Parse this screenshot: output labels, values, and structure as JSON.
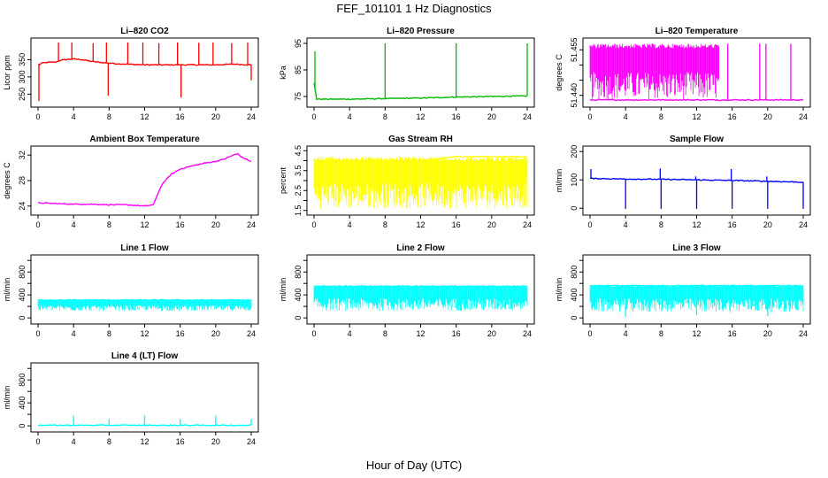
{
  "figure": {
    "title": "FEF_101101  1 Hz Diagnostics",
    "xlabel": "Hour of Day (UTC)"
  },
  "chart_data": [
    {
      "type": "line",
      "title": "Li–820 CO2",
      "ylabel": "Licor ppm",
      "xlim": [
        0,
        24
      ],
      "ylim": [
        220,
        405
      ],
      "x_ticks": [
        0,
        4,
        8,
        12,
        16,
        20,
        24
      ],
      "y_ticks": [
        250,
        300,
        350
      ],
      "color": "#ff0000",
      "series": [
        {
          "x": [
            0,
            0.5,
            1,
            2,
            2.5,
            3,
            4,
            5,
            6,
            7,
            8,
            9,
            10,
            11,
            12,
            13,
            14,
            15,
            16,
            17,
            18,
            19,
            20,
            21,
            22,
            23,
            24
          ],
          "values": [
            335,
            340,
            342,
            343,
            348,
            350,
            352,
            350,
            345,
            342,
            340,
            338,
            337,
            336,
            335,
            335,
            335,
            335,
            335,
            335,
            335,
            335,
            335,
            336,
            337,
            336,
            335
          ]
        }
      ],
      "spikes_high": [
        {
          "x": 2.3,
          "y": 400
        },
        {
          "x": 3.8,
          "y": 400
        },
        {
          "x": 6.2,
          "y": 398
        },
        {
          "x": 7.7,
          "y": 400
        },
        {
          "x": 10.1,
          "y": 400
        },
        {
          "x": 11.8,
          "y": 400
        },
        {
          "x": 13.6,
          "y": 398
        },
        {
          "x": 15.7,
          "y": 400
        },
        {
          "x": 18.1,
          "y": 399
        },
        {
          "x": 19.7,
          "y": 400
        },
        {
          "x": 21.8,
          "y": 398
        },
        {
          "x": 23.6,
          "y": 400
        }
      ],
      "spikes_low": [
        {
          "x": 0.1,
          "y": 230
        },
        {
          "x": 7.9,
          "y": 245
        },
        {
          "x": 16.1,
          "y": 240
        },
        {
          "x": 24,
          "y": 290
        }
      ]
    },
    {
      "type": "line",
      "title": "Li–820 Pressure",
      "ylabel": "kPa",
      "xlim": [
        0,
        24
      ],
      "ylim": [
        72,
        96
      ],
      "x_ticks": [
        0,
        4,
        8,
        12,
        16,
        20,
        24
      ],
      "y_ticks": [
        75,
        85,
        95
      ],
      "color": "#00bb00",
      "series": [
        {
          "x": [
            0,
            0.3,
            4,
            8,
            12,
            16,
            20,
            24
          ],
          "values": [
            80,
            74,
            74,
            74.2,
            74.4,
            74.8,
            75,
            75.2
          ]
        }
      ],
      "spikes_high": [
        {
          "x": 0.1,
          "y": 92
        },
        {
          "x": 8.0,
          "y": 95
        },
        {
          "x": 16.0,
          "y": 95
        },
        {
          "x": 24.0,
          "y": 95
        }
      ],
      "spikes_low": []
    },
    {
      "type": "line",
      "title": "Li–820 Temperature",
      "ylabel": "degrees C",
      "xlim": [
        0,
        24
      ],
      "ylim": [
        51.437,
        51.458
      ],
      "x_ticks": [
        0,
        4,
        8,
        12,
        16,
        20,
        24
      ],
      "y_ticks": [
        51.44,
        51.445,
        51.45,
        51.455
      ],
      "y_tick_labels": [
        "51.440",
        "",
        "",
        "51.455"
      ],
      "color": "#ff00ff",
      "series": [
        {
          "x": [
            0,
            24
          ],
          "values": [
            51.4385,
            51.4385
          ]
        }
      ],
      "band_dense": {
        "from": 0,
        "to": 14.5,
        "low": 51.4385,
        "high": 51.457
      },
      "spikes_high": [
        {
          "x": 15.5,
          "y": 51.457
        },
        {
          "x": 19.1,
          "y": 51.457
        },
        {
          "x": 19.8,
          "y": 51.457
        },
        {
          "x": 22.6,
          "y": 51.457
        }
      ],
      "spikes_low": []
    },
    {
      "type": "line",
      "title": "Ambient Box Temperature",
      "ylabel": "degrees C",
      "xlim": [
        0,
        24
      ],
      "ylim": [
        23,
        33
      ],
      "x_ticks": [
        0,
        4,
        8,
        12,
        16,
        20,
        24
      ],
      "y_ticks": [
        24,
        28,
        32
      ],
      "color": "#ff00ff",
      "series": [
        {
          "x": [
            0,
            2,
            4,
            6,
            8,
            10,
            12,
            13,
            13.5,
            14,
            15,
            16,
            17,
            18,
            19,
            20,
            21,
            22,
            22.5,
            23,
            24
          ],
          "values": [
            24.5,
            24.4,
            24.3,
            24.3,
            24.2,
            24.2,
            24.0,
            24.2,
            26.0,
            27.5,
            29.0,
            29.8,
            30.2,
            30.5,
            30.8,
            31.0,
            31.4,
            32.0,
            32.2,
            31.6,
            31.0
          ]
        }
      ],
      "spikes_high": [],
      "spikes_low": []
    },
    {
      "type": "line",
      "title": "Gas Stream RH",
      "ylabel": "percent",
      "xlim": [
        0,
        24
      ],
      "ylim": [
        1.4,
        4.6
      ],
      "x_ticks": [
        0,
        4,
        8,
        12,
        16,
        20,
        24
      ],
      "y_ticks": [
        1.5,
        2.0,
        2.5,
        3.0,
        3.5,
        4.0,
        4.5
      ],
      "y_tick_labels": [
        "1.5",
        "",
        "2.5",
        "",
        "3.5",
        "",
        "4.5"
      ],
      "color": "#ffff00",
      "series": [
        {
          "x": [
            0,
            4,
            8,
            12,
            16,
            20,
            24
          ],
          "values": [
            4.0,
            4.0,
            4.0,
            4.0,
            4.2,
            4.2,
            4.2
          ]
        }
      ],
      "band_dense": {
        "from": 0,
        "to": 24,
        "low": 1.6,
        "high": 4.2
      },
      "spikes_high": [],
      "spikes_low": []
    },
    {
      "type": "line",
      "title": "Sample Flow",
      "ylabel": "ml/min",
      "xlim": [
        0,
        24
      ],
      "ylim": [
        -15,
        210
      ],
      "x_ticks": [
        0,
        4,
        8,
        12,
        16,
        20,
        24
      ],
      "y_ticks": [
        0,
        100,
        200
      ],
      "color": "#0000ff",
      "series": [
        {
          "x": [
            0,
            4,
            8,
            12,
            16,
            20,
            24
          ],
          "values": [
            105,
            103,
            102,
            100,
            98,
            95,
            92
          ]
        }
      ],
      "spikes_high": [
        {
          "x": 0.1,
          "y": 138
        },
        {
          "x": 7.9,
          "y": 140
        },
        {
          "x": 11.9,
          "y": 112
        },
        {
          "x": 15.9,
          "y": 138
        },
        {
          "x": 19.9,
          "y": 112
        }
      ],
      "spikes_low": [
        {
          "x": 4.0,
          "y": -2
        },
        {
          "x": 8.0,
          "y": -2
        },
        {
          "x": 12.0,
          "y": -2
        },
        {
          "x": 16.0,
          "y": -2
        },
        {
          "x": 20.0,
          "y": -2
        },
        {
          "x": 24.0,
          "y": -2
        }
      ]
    },
    {
      "type": "line",
      "title": "Line 1 Flow",
      "ylabel": "ml/min",
      "xlim": [
        0,
        24
      ],
      "ylim": [
        -60,
        1050
      ],
      "x_ticks": [
        0,
        4,
        8,
        12,
        16,
        20,
        24
      ],
      "y_ticks": [
        0,
        200,
        400,
        600,
        800,
        1000
      ],
      "y_tick_labels": [
        "0",
        "",
        "400",
        "",
        "800",
        ""
      ],
      "color": "#00ffff",
      "series": [
        {
          "x": [
            0,
            24
          ],
          "values": [
            310,
            310
          ]
        }
      ],
      "band_dense": {
        "from": 0,
        "to": 24,
        "low": 120,
        "high": 320
      },
      "spikes_high": [],
      "spikes_low": []
    },
    {
      "type": "line",
      "title": "Line 2 Flow",
      "ylabel": "ml/min",
      "xlim": [
        0,
        24
      ],
      "ylim": [
        -60,
        1050
      ],
      "x_ticks": [
        0,
        4,
        8,
        12,
        16,
        20,
        24
      ],
      "y_ticks": [
        0,
        200,
        400,
        600,
        800,
        1000
      ],
      "y_tick_labels": [
        "0",
        "",
        "400",
        "",
        "800",
        ""
      ],
      "color": "#00ffff",
      "series": [
        {
          "x": [
            0,
            24
          ],
          "values": [
            550,
            550
          ]
        }
      ],
      "band_dense": {
        "from": 0,
        "to": 24,
        "low": 120,
        "high": 570
      },
      "spikes_high": [],
      "spikes_low": []
    },
    {
      "type": "line",
      "title": "Line 3 Flow",
      "ylabel": "ml/min",
      "xlim": [
        0,
        24
      ],
      "ylim": [
        -60,
        1050
      ],
      "x_ticks": [
        0,
        4,
        8,
        12,
        16,
        20,
        24
      ],
      "y_ticks": [
        0,
        200,
        400,
        600,
        800,
        1000
      ],
      "y_tick_labels": [
        "0",
        "",
        "400",
        "",
        "800",
        ""
      ],
      "color": "#00ffff",
      "series": [
        {
          "x": [
            0,
            24
          ],
          "values": [
            560,
            560
          ]
        }
      ],
      "band_dense": {
        "from": 0,
        "to": 24,
        "low": 100,
        "high": 580
      },
      "spikes_high": [],
      "spikes_low": [
        {
          "x": 4.0,
          "y": 20
        },
        {
          "x": 12.0,
          "y": 40
        },
        {
          "x": 20.0,
          "y": 30
        }
      ]
    },
    {
      "type": "line",
      "title": "Line 4 (LT) Flow",
      "ylabel": "ml/min",
      "xlim": [
        0,
        24
      ],
      "ylim": [
        -60,
        1050
      ],
      "x_ticks": [
        0,
        4,
        8,
        12,
        16,
        20,
        24
      ],
      "y_ticks": [
        0,
        200,
        400,
        600,
        800,
        1000
      ],
      "y_tick_labels": [
        "0",
        "",
        "400",
        "",
        "800",
        ""
      ],
      "color": "#00ffff",
      "series": [
        {
          "x": [
            0,
            24
          ],
          "values": [
            10,
            10
          ]
        }
      ],
      "spikes_high": [
        {
          "x": 4.0,
          "y": 180
        },
        {
          "x": 8.0,
          "y": 120
        },
        {
          "x": 12.0,
          "y": 180
        },
        {
          "x": 16.0,
          "y": 120
        },
        {
          "x": 20.0,
          "y": 180
        },
        {
          "x": 24.0,
          "y": 120
        }
      ],
      "spikes_low": []
    }
  ]
}
